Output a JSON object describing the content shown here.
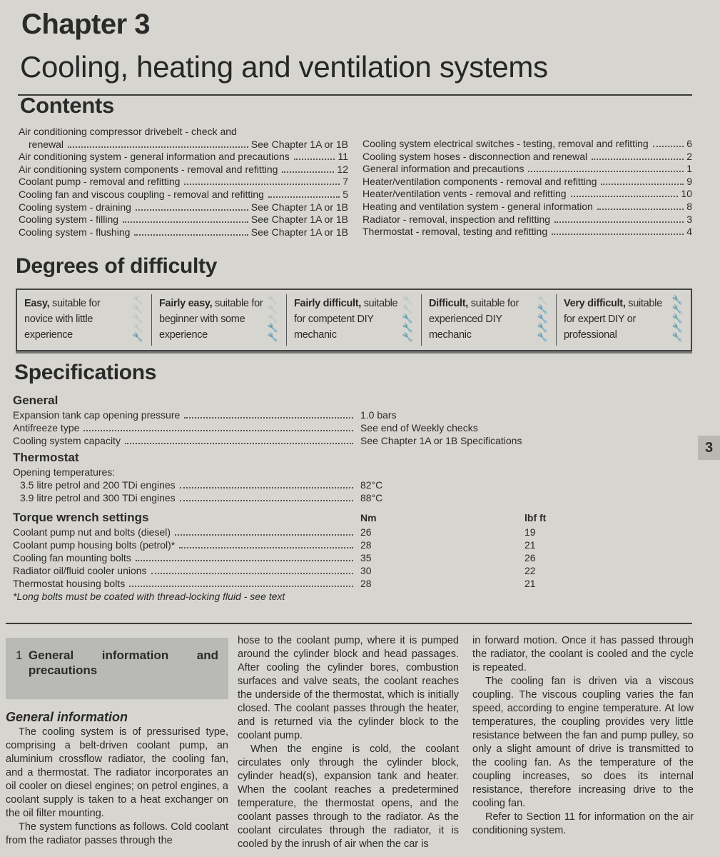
{
  "chapter": "Chapter 3",
  "title": "Cooling, heating and ventilation systems",
  "contents": {
    "heading": "Contents",
    "left": [
      {
        "label": "Air conditioning compressor drivebelt - check and",
        "label2": "renewal",
        "ref": "See Chapter 1A or 1B"
      },
      {
        "label": "Air conditioning system - general information and precautions",
        "ref": "11"
      },
      {
        "label": "Air conditioning system components - removal and refitting",
        "ref": "12"
      },
      {
        "label": "Coolant pump - removal and refitting",
        "ref": "7"
      },
      {
        "label": "Cooling fan and viscous coupling - removal and refitting",
        "ref": "5"
      },
      {
        "label": "Cooling system - draining",
        "ref": "See Chapter 1A or 1B"
      },
      {
        "label": "Cooling system - filling",
        "ref": "See Chapter 1A or 1B"
      },
      {
        "label": "Cooling system - flushing",
        "ref": "See Chapter 1A or 1B"
      }
    ],
    "right": [
      {
        "label": "Cooling system electrical switches - testing, removal and refitting",
        "ref": "6"
      },
      {
        "label": "Cooling system hoses - disconnection and renewal",
        "ref": "2"
      },
      {
        "label": "General information and precautions",
        "ref": "1"
      },
      {
        "label": "Heater/ventilation components - removal and refitting",
        "ref": "9"
      },
      {
        "label": "Heater/ventilation vents - removal and refitting",
        "ref": "10"
      },
      {
        "label": "Heating and ventilation system - general information",
        "ref": "8"
      },
      {
        "label": "Radiator - removal, inspection and refitting",
        "ref": "3"
      },
      {
        "label": "Thermostat - removal, testing and refitting",
        "ref": "4"
      }
    ]
  },
  "difficulty": {
    "heading": "Degrees of difficulty",
    "levels": [
      {
        "bold": "Easy,",
        "text": " suitable for novice with little experience",
        "spanners": 1
      },
      {
        "bold": "Fairly easy,",
        "text": " suitable for beginner with some experience",
        "spanners": 2
      },
      {
        "bold": "Fairly difficult,",
        "text": " suitable for competent DIY mechanic",
        "spanners": 3
      },
      {
        "bold": "Difficult,",
        "text": " suitable for experienced DIY mechanic",
        "spanners": 4
      },
      {
        "bold": "Very difficult,",
        "text": " suitable for expert DIY or professional",
        "spanners": 5
      }
    ]
  },
  "specs": {
    "heading": "Specifications",
    "general": {
      "heading": "General",
      "rows": [
        {
          "label": "Expansion tank cap opening pressure",
          "value": "1.0 bars"
        },
        {
          "label": "Antifreeze type",
          "value": "See end of Weekly checks"
        },
        {
          "label": "Cooling system capacity",
          "value": "See Chapter 1A or 1B Specifications"
        }
      ]
    },
    "thermostat": {
      "heading": "Thermostat",
      "sub": "Opening temperatures:",
      "rows": [
        {
          "label": "3.5 litre petrol and 200 TDi engines",
          "value": "82°C"
        },
        {
          "label": "3.9 litre petrol and 300 TDi engines",
          "value": "88°C"
        }
      ]
    },
    "torque": {
      "heading": "Torque wrench settings",
      "col1": "Nm",
      "col2": "lbf ft",
      "rows": [
        {
          "label": "Coolant pump nut and bolts (diesel)",
          "nm": "26",
          "lbf": "19"
        },
        {
          "label": "Coolant pump housing bolts (petrol)*",
          "nm": "28",
          "lbf": "21"
        },
        {
          "label": "Cooling fan mounting bolts",
          "nm": "35",
          "lbf": "26"
        },
        {
          "label": "Radiator oil/fluid cooler unions",
          "nm": "30",
          "lbf": "22"
        },
        {
          "label": "Thermostat housing bolts",
          "nm": "28",
          "lbf": "21"
        }
      ],
      "note": "*Long bolts must be coated with thread-locking fluid - see text"
    }
  },
  "side_tab": "3",
  "section": {
    "number": "1",
    "title": "General information and precautions",
    "subheading": "General information"
  },
  "body": {
    "col1": [
      "The cooling system is of pressurised type, comprising a belt-driven coolant pump, an aluminium crossflow radiator, the cooling fan, and a thermostat. The radiator incorporates an oil cooler on diesel engines; on petrol engines, a coolant supply is taken to a heat exchanger on the oil filter mounting.",
      "The system functions as follows. Cold coolant from the radiator passes through the"
    ],
    "col2": [
      "hose to the coolant pump, where it is pumped around the cylinder block and head passages. After cooling the cylinder bores, combustion surfaces and valve seats, the coolant reaches the underside of the thermostat, which is initially closed. The coolant passes through the heater, and is returned via the cylinder block to the coolant pump.",
      "When the engine is cold, the coolant circulates only through the cylinder block, cylinder head(s), expansion tank and heater. When the coolant reaches a predetermined temperature, the thermostat opens, and the coolant passes through to the radiator. As the coolant circulates through the radiator, it is cooled by the inrush of air when the car is"
    ],
    "col3": [
      "in forward motion. Once it has passed through the radiator, the coolant is cooled and the cycle is repeated.",
      "The cooling fan is driven via a viscous coupling. The viscous coupling varies the fan speed, according to engine temperature. At low temperatures, the coupling provides very little resistance between the fan and pump pulley, so only a slight amount of drive is transmitted to the cooling fan. As the temperature of the coupling increases, so does its internal resistance, therefore increasing drive to the cooling fan.",
      "Refer to Section 11 for information on the air conditioning system."
    ]
  }
}
